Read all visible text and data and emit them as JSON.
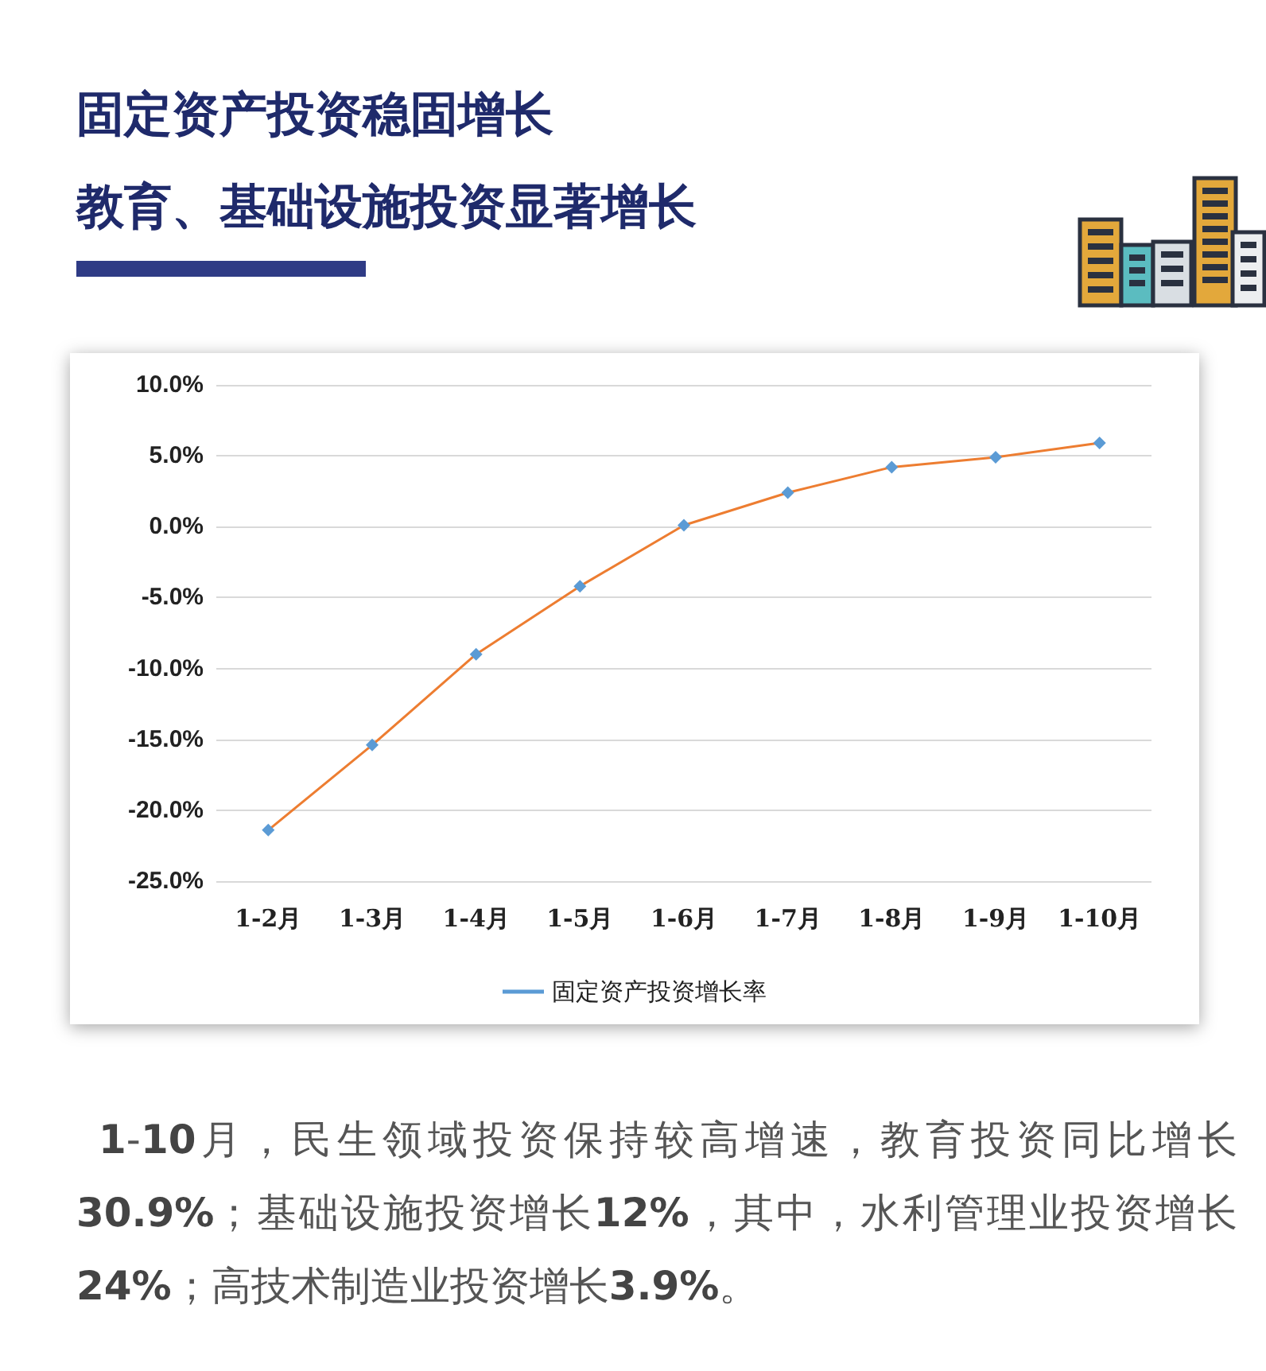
{
  "chart_data": {
    "type": "line",
    "title": "固定资产投资稳固增长",
    "subtitle": "教育、基础设施投资显著增长",
    "categories": [
      "1-2月",
      "1-3月",
      "1-4月",
      "1-5月",
      "1-6月",
      "1-7月",
      "1-8月",
      "1-9月",
      "1-10月"
    ],
    "series": [
      {
        "name": "固定资产投资增长率",
        "color": "#ed7d31",
        "colors": [
          "#5b9bd5",
          "#5b9bd5",
          "#5b9bd5",
          "#5b9bd5",
          "#5b9bd5",
          "#5b9bd5",
          "#5b9bd5",
          "#5b9bd5",
          "#5b9bd5"
        ],
        "values": [
          -21.4,
          -15.4,
          -9.0,
          -4.2,
          0.1,
          2.4,
          4.2,
          4.9,
          5.9
        ]
      }
    ],
    "ylim": [
      -25,
      10
    ],
    "yticks": [
      {
        "value": -25,
        "label": "-25.0%"
      },
      {
        "value": -20,
        "label": "-20.0%"
      },
      {
        "value": -15,
        "label": "-15.0%"
      },
      {
        "value": -10,
        "label": "-10.0%"
      },
      {
        "value": -5,
        "label": "-5.0%"
      },
      {
        "value": 0,
        "label": "0.0%"
      },
      {
        "value": 5,
        "label": "5.0%"
      },
      {
        "value": 10,
        "label": "10.0%"
      }
    ],
    "grid": "y",
    "legend": "bottom",
    "marker": "diamond",
    "line_style": "solid",
    "annotations": [
      "1-10月，民生领域投资保持较高增速，教育投资同比增长30.9%；基础设施投资增长12%，其中，水利管理业投资增长24%；高技术制造业投资增长3.9%。"
    ]
  }
}
